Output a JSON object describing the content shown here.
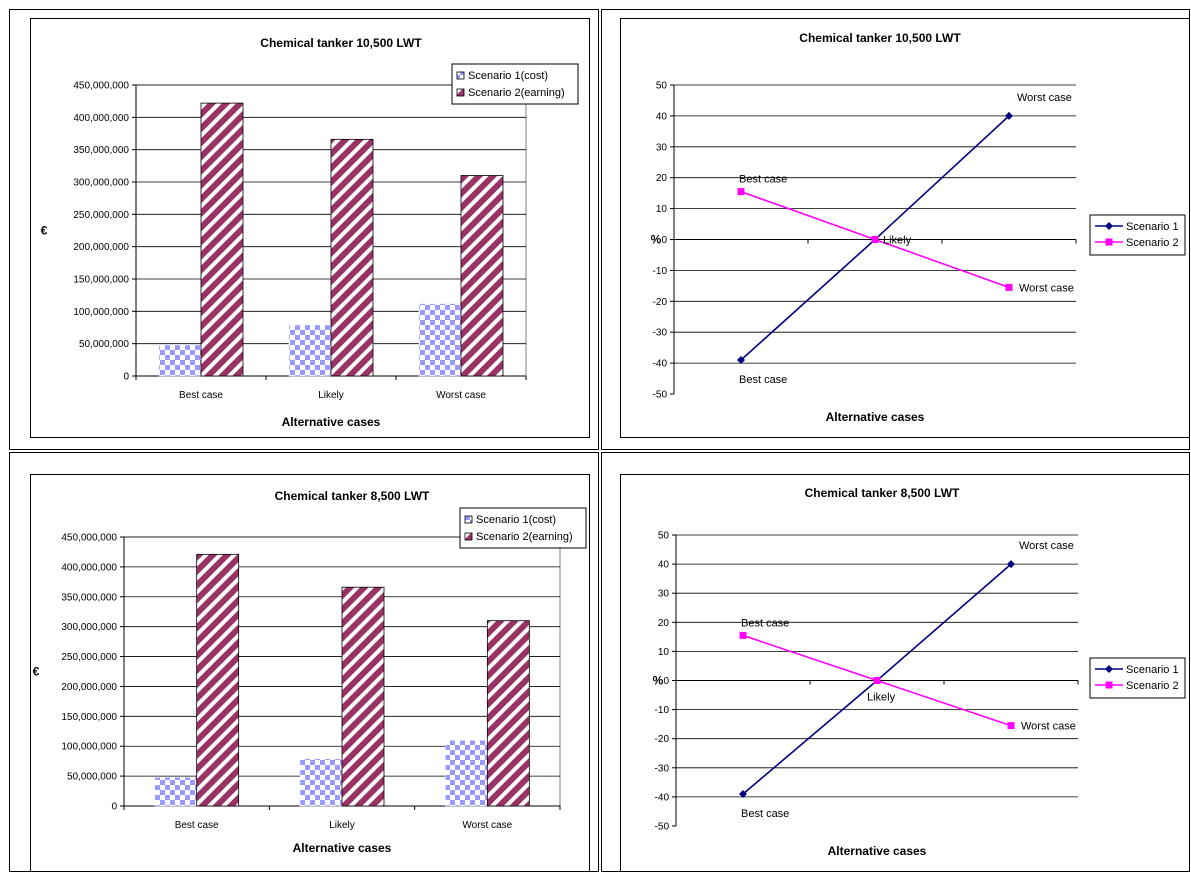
{
  "chart_data": [
    {
      "type": "bar",
      "title": "Chemical tanker 10,500 LWT",
      "xlabel": "Alternative cases",
      "ylabel": "€",
      "categories": [
        "Best case",
        "Likely",
        "Worst case"
      ],
      "ylim": [
        0,
        450000000
      ],
      "yticks": [
        "0",
        "50,000,000",
        "100,000,000",
        "150,000,000",
        "200,000,000",
        "250,000,000",
        "300,000,000",
        "350,000,000",
        "400,000,000",
        "450,000,000"
      ],
      "series": [
        {
          "name": "Scenario 1(cost)",
          "values": [
            48000000,
            79000000,
            112000000
          ]
        },
        {
          "name": "Scenario 2(earning)",
          "values": [
            422000000,
            366000000,
            310000000
          ]
        }
      ],
      "legend": "top-right",
      "grid": true
    },
    {
      "type": "line",
      "title": "Chemical tanker 10,500 LWT",
      "xlabel": "Alternative cases",
      "ylabel": "%",
      "categories": [
        "Best case",
        "Likely",
        "Worst case"
      ],
      "ylim": [
        -50,
        50
      ],
      "yticks": [
        "50",
        "40",
        "30",
        "20",
        "10",
        "0",
        "-10",
        "-20",
        "-30",
        "-40",
        "-50"
      ],
      "series": [
        {
          "name": "Scenario 1",
          "values": [
            -39,
            0,
            40
          ],
          "labels": [
            "Best case",
            "",
            "Worst case"
          ]
        },
        {
          "name": "Scenario 2",
          "values": [
            15.5,
            0,
            -15.5
          ],
          "labels": [
            "Best case",
            "Likely",
            "Worst case"
          ]
        }
      ],
      "legend": "right",
      "grid": true
    },
    {
      "type": "bar",
      "title": "Chemical tanker 8,500 LWT",
      "xlabel": "Alternative cases",
      "ylabel": "€",
      "categories": [
        "Best case",
        "Likely",
        "Worst case"
      ],
      "ylim": [
        0,
        450000000
      ],
      "yticks": [
        "0",
        "50,000,000",
        "100,000,000",
        "150,000,000",
        "200,000,000",
        "250,000,000",
        "300,000,000",
        "350,000,000",
        "400,000,000",
        "450,000,000"
      ],
      "series": [
        {
          "name": "Scenario 1(cost)",
          "values": [
            48000000,
            79000000,
            110000000
          ]
        },
        {
          "name": "Scenario 2(earning)",
          "values": [
            421000000,
            366000000,
            310000000
          ]
        }
      ],
      "legend": "top-right",
      "grid": true
    },
    {
      "type": "line",
      "title": "Chemical tanker 8,500 LWT",
      "xlabel": "Alternative cases",
      "ylabel": "%",
      "categories": [
        "Best case",
        "Likely",
        "Worst case"
      ],
      "ylim": [
        -50,
        50
      ],
      "yticks": [
        "50",
        "40",
        "30",
        "20",
        "10",
        "0",
        "-10",
        "-20",
        "-30",
        "-40",
        "-50"
      ],
      "series": [
        {
          "name": "Scenario 1",
          "values": [
            -39,
            0,
            40
          ],
          "labels": [
            "Best case",
            "Likely",
            "Worst case"
          ]
        },
        {
          "name": "Scenario 2",
          "values": [
            15.5,
            0,
            -15.5
          ],
          "labels": [
            "Best case",
            "",
            "Worst case"
          ]
        }
      ],
      "legend": "right",
      "grid": true
    }
  ],
  "colors": {
    "s1_bar_check": "#9999ff",
    "s2_bar_stripe": "#993366",
    "s1_line": "#000080",
    "s2_line": "#ff00ff",
    "grid": "#000000"
  }
}
